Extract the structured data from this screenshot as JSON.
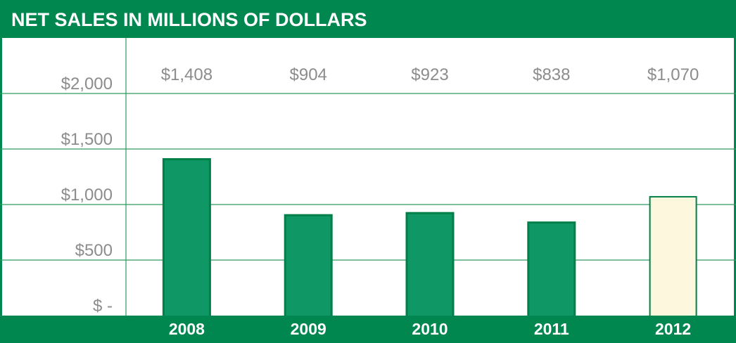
{
  "title": "NET SALES IN MILLIONS OF DOLLARS",
  "colors": {
    "brand_green": "#00864f",
    "bar_fill": "#0f9866",
    "bar_stroke": "#008048",
    "highlight_fill": "#fdf7dd",
    "grid": "#2f9b62",
    "text_gray": "#8c8c8c"
  },
  "chart_data": {
    "type": "bar",
    "title": "NET SALES IN MILLIONS OF DOLLARS",
    "categories": [
      "2008",
      "2009",
      "2010",
      "2011",
      "2012"
    ],
    "values": [
      1408,
      904,
      923,
      838,
      1070
    ],
    "data_labels": [
      "$1,408",
      "$904",
      "$923",
      "$838",
      "$1,070"
    ],
    "highlight": "2012",
    "ylim": [
      0,
      2000
    ],
    "yticks": [
      0,
      500,
      1000,
      1500,
      2000
    ],
    "ytick_labels": [
      "$ -",
      "$500",
      "$1,000",
      "$1,500",
      "$2,000"
    ],
    "grid": true,
    "legend": "none"
  }
}
